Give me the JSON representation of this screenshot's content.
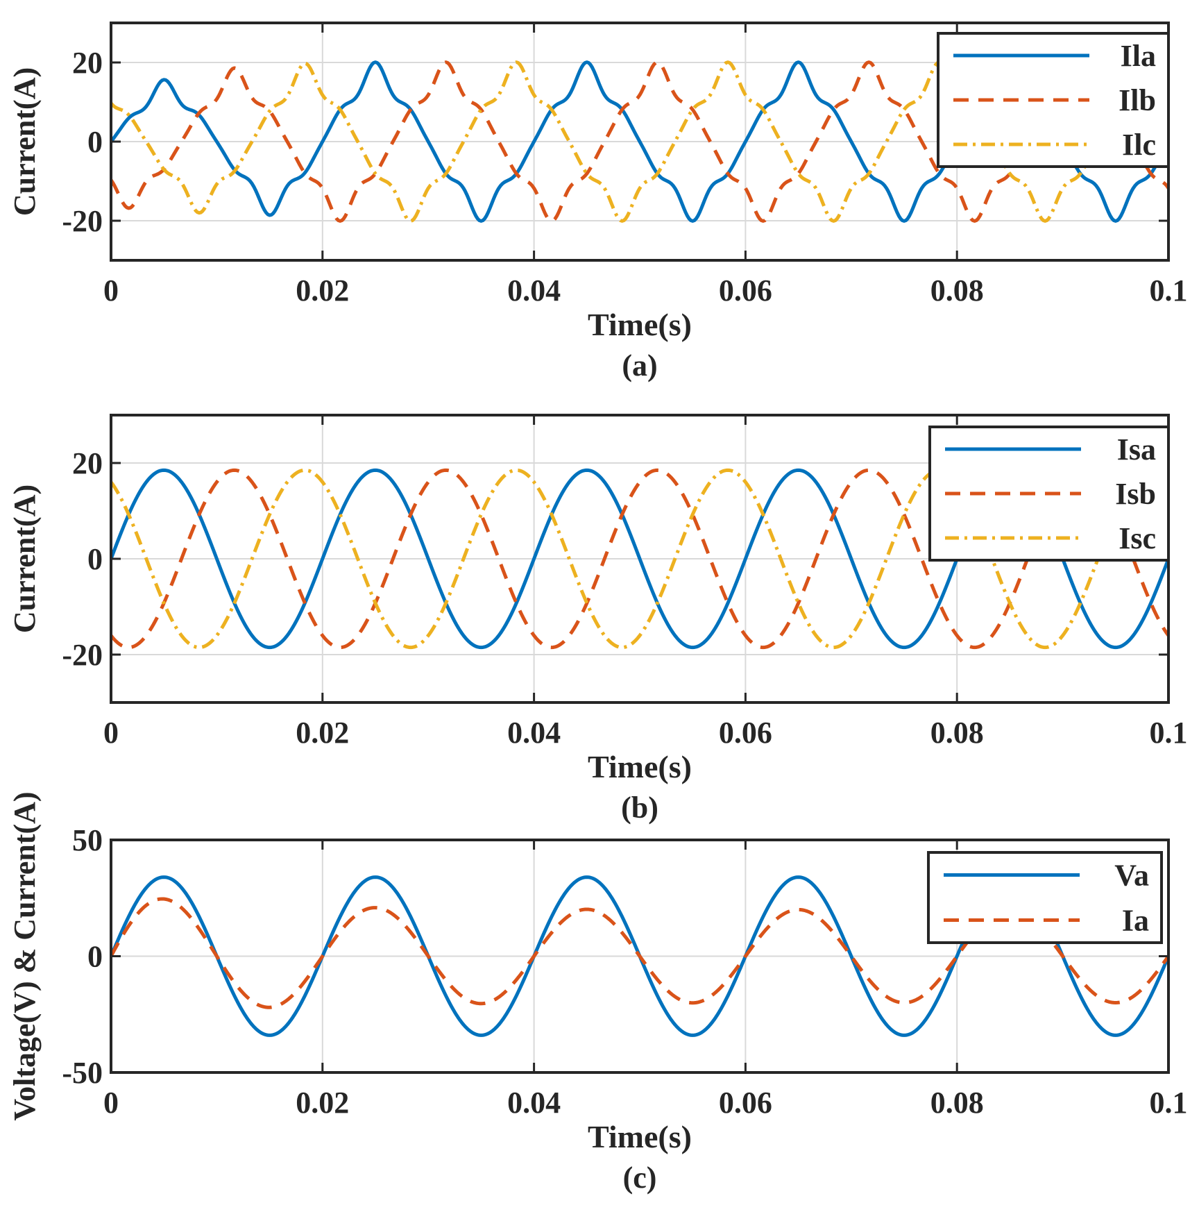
{
  "colors": {
    "blue": "#0072BD",
    "orange": "#D95319",
    "yellow": "#EDB120",
    "axis": "#262626",
    "grid": "#D9D9D9"
  },
  "chart_data": [
    {
      "id": "a",
      "type": "line",
      "caption": "(a)",
      "xlabel": "Time(s)",
      "ylabel": "Current(A)",
      "xlim": [
        0,
        0.1
      ],
      "ylim": [
        -30,
        30
      ],
      "xticks": [
        0,
        0.02,
        0.04,
        0.06,
        0.08,
        0.1
      ],
      "xtick_labels": [
        "0",
        "0.02",
        "0.04",
        "0.06",
        "0.08",
        "0.1"
      ],
      "yticks": [
        -20,
        0,
        20
      ],
      "ytick_labels": [
        "-20",
        "0",
        "20"
      ],
      "grid": true,
      "legend_position": "top-right",
      "period": 0.02,
      "waveform": "nonsinusoidal-load-current",
      "series": [
        {
          "name": "Ila",
          "color_key": "blue",
          "style": "solid",
          "amplitude": 17,
          "phase_deg": 0,
          "first_cycle_amplitude": 12
        },
        {
          "name": "Ilb",
          "color_key": "orange",
          "style": "dashed",
          "amplitude": 17,
          "phase_deg": -120,
          "first_cycle_amplitude": 14
        },
        {
          "name": "Ilc",
          "color_key": "yellow",
          "style": "dashdot",
          "amplitude": 17,
          "phase_deg": 120,
          "first_cycle_amplitude": 14
        }
      ]
    },
    {
      "id": "b",
      "type": "line",
      "caption": "(b)",
      "xlabel": "Time(s)",
      "ylabel": "Current(A)",
      "xlim": [
        0,
        0.1
      ],
      "ylim": [
        -30,
        30
      ],
      "xticks": [
        0,
        0.02,
        0.04,
        0.06,
        0.08,
        0.1
      ],
      "xtick_labels": [
        "0",
        "0.02",
        "0.04",
        "0.06",
        "0.08",
        "0.1"
      ],
      "yticks": [
        -20,
        0,
        20
      ],
      "ytick_labels": [
        "-20",
        "0",
        "20"
      ],
      "grid": true,
      "legend_position": "top-right",
      "period": 0.02,
      "waveform": "sinusoidal",
      "series": [
        {
          "name": "Isa",
          "color_key": "blue",
          "style": "solid",
          "amplitude": 18.5,
          "phase_deg": 0
        },
        {
          "name": "Isb",
          "color_key": "orange",
          "style": "dashed",
          "amplitude": 18.5,
          "phase_deg": -120
        },
        {
          "name": "Isc",
          "color_key": "yellow",
          "style": "dashdot",
          "amplitude": 18.5,
          "phase_deg": 120
        }
      ]
    },
    {
      "id": "c",
      "type": "line",
      "caption": "(c)",
      "xlabel": "Time(s)",
      "ylabel": "Voltage(V) & Current(A)",
      "xlim": [
        0,
        0.1
      ],
      "ylim": [
        -50,
        50
      ],
      "xticks": [
        0,
        0.02,
        0.04,
        0.06,
        0.08,
        0.1
      ],
      "xtick_labels": [
        "0",
        "0.02",
        "0.04",
        "0.06",
        "0.08",
        "0.1"
      ],
      "yticks": [
        -50,
        0,
        50
      ],
      "ytick_labels": [
        "-50",
        "0",
        "50"
      ],
      "grid": true,
      "legend_position": "top-right",
      "period": 0.02,
      "waveform": "sinusoidal",
      "series": [
        {
          "name": "Va",
          "color_key": "blue",
          "style": "solid",
          "amplitude": 34,
          "phase_deg": 0
        },
        {
          "name": "Ia",
          "color_key": "orange",
          "style": "dashed",
          "amplitude": 20,
          "phase_deg": 0,
          "first_peak": 27
        }
      ]
    }
  ]
}
